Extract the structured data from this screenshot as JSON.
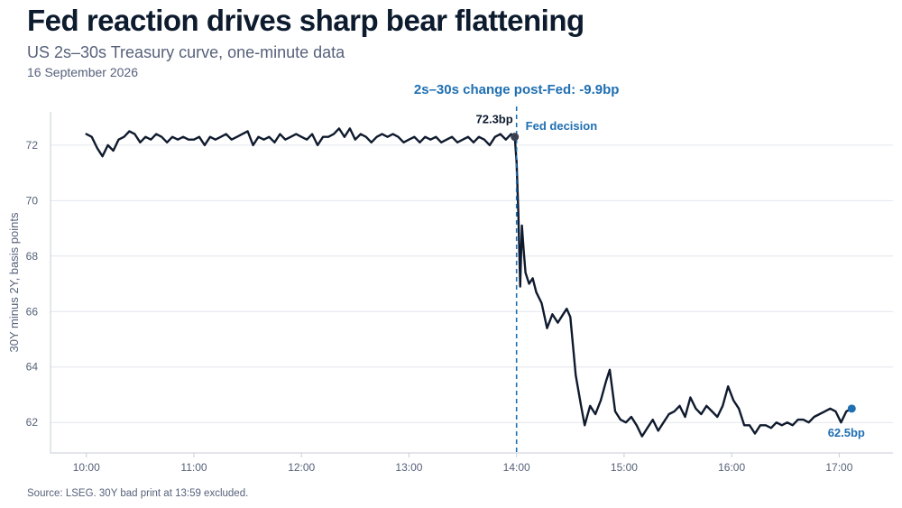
{
  "header": {
    "title": "Fed reaction drives sharp bear flattening",
    "subtitle": "US 2s–30s Treasury curve, one-minute data",
    "date": "16 September 2026"
  },
  "footer": {
    "source": "Source: LSEG. 30Y bad print at 13:59 excluded."
  },
  "colors": {
    "line": "#0f1a2e",
    "accent": "#1f6fb2",
    "grid": "#e3e6ee",
    "axis": "#c9cdd8",
    "muted": "#56617a",
    "label": "#0d1b2e"
  },
  "chart_data": {
    "type": "line",
    "title": "Fed reaction drives sharp bear flattening",
    "xlabel": "",
    "ylabel": "30Y minus 2Y, basis points",
    "xlim": [
      "09:40",
      "17:30"
    ],
    "ylim": [
      60.9,
      73.2
    ],
    "x_ticks": [
      "10:00",
      "11:00",
      "12:00",
      "13:00",
      "14:00",
      "15:00",
      "16:00",
      "17:00"
    ],
    "y_ticks": [
      62,
      64,
      66,
      68,
      70,
      72
    ],
    "grid": "horizontal",
    "series": [
      {
        "points": [
          [
            "10:00",
            72.4
          ],
          [
            "10:03",
            72.3
          ],
          [
            "10:06",
            71.9
          ],
          [
            "10:09",
            71.6
          ],
          [
            "10:12",
            72.0
          ],
          [
            "10:15",
            71.8
          ],
          [
            "10:18",
            72.2
          ],
          [
            "10:21",
            72.3
          ],
          [
            "10:24",
            72.5
          ],
          [
            "10:27",
            72.4
          ],
          [
            "10:30",
            72.1
          ],
          [
            "10:33",
            72.3
          ],
          [
            "10:36",
            72.2
          ],
          [
            "10:39",
            72.4
          ],
          [
            "10:42",
            72.3
          ],
          [
            "10:45",
            72.1
          ],
          [
            "10:48",
            72.3
          ],
          [
            "10:51",
            72.2
          ],
          [
            "10:54",
            72.3
          ],
          [
            "10:57",
            72.2
          ],
          [
            "11:00",
            72.2
          ],
          [
            "11:03",
            72.3
          ],
          [
            "11:06",
            72.0
          ],
          [
            "11:09",
            72.3
          ],
          [
            "11:12",
            72.2
          ],
          [
            "11:15",
            72.3
          ],
          [
            "11:18",
            72.4
          ],
          [
            "11:21",
            72.2
          ],
          [
            "11:24",
            72.3
          ],
          [
            "11:27",
            72.4
          ],
          [
            "11:30",
            72.5
          ],
          [
            "11:33",
            72.0
          ],
          [
            "11:36",
            72.3
          ],
          [
            "11:39",
            72.2
          ],
          [
            "11:42",
            72.3
          ],
          [
            "11:45",
            72.1
          ],
          [
            "11:48",
            72.4
          ],
          [
            "11:51",
            72.2
          ],
          [
            "11:54",
            72.3
          ],
          [
            "11:57",
            72.4
          ],
          [
            "12:00",
            72.3
          ],
          [
            "12:03",
            72.2
          ],
          [
            "12:06",
            72.4
          ],
          [
            "12:09",
            72.0
          ],
          [
            "12:12",
            72.3
          ],
          [
            "12:15",
            72.3
          ],
          [
            "12:18",
            72.4
          ],
          [
            "12:21",
            72.6
          ],
          [
            "12:24",
            72.3
          ],
          [
            "12:27",
            72.6
          ],
          [
            "12:30",
            72.2
          ],
          [
            "12:33",
            72.4
          ],
          [
            "12:36",
            72.3
          ],
          [
            "12:39",
            72.1
          ],
          [
            "12:42",
            72.3
          ],
          [
            "12:45",
            72.4
          ],
          [
            "12:48",
            72.3
          ],
          [
            "12:51",
            72.4
          ],
          [
            "12:54",
            72.3
          ],
          [
            "12:57",
            72.1
          ],
          [
            "13:00",
            72.2
          ],
          [
            "13:03",
            72.3
          ],
          [
            "13:06",
            72.1
          ],
          [
            "13:09",
            72.3
          ],
          [
            "13:12",
            72.2
          ],
          [
            "13:15",
            72.3
          ],
          [
            "13:18",
            72.1
          ],
          [
            "13:21",
            72.2
          ],
          [
            "13:24",
            72.3
          ],
          [
            "13:27",
            72.1
          ],
          [
            "13:30",
            72.2
          ],
          [
            "13:33",
            72.3
          ],
          [
            "13:36",
            72.1
          ],
          [
            "13:39",
            72.3
          ],
          [
            "13:42",
            72.2
          ],
          [
            "13:45",
            72.0
          ],
          [
            "13:48",
            72.3
          ],
          [
            "13:51",
            72.4
          ],
          [
            "13:54",
            72.2
          ],
          [
            "13:57",
            72.4
          ],
          [
            "13:59",
            72.3
          ],
          [
            "14:00",
            71.4
          ],
          [
            "14:01",
            69.5
          ],
          [
            "14:02",
            66.9
          ],
          [
            "14:03",
            69.1
          ],
          [
            "14:04",
            68.2
          ],
          [
            "14:05",
            67.4
          ],
          [
            "14:07",
            67.0
          ],
          [
            "14:09",
            67.2
          ],
          [
            "14:11",
            66.7
          ],
          [
            "14:14",
            66.3
          ],
          [
            "14:17",
            65.4
          ],
          [
            "14:20",
            65.9
          ],
          [
            "14:23",
            65.6
          ],
          [
            "14:26",
            65.9
          ],
          [
            "14:28",
            66.1
          ],
          [
            "14:30",
            65.8
          ],
          [
            "14:33",
            63.7
          ],
          [
            "14:36",
            62.6
          ],
          [
            "14:38",
            61.9
          ],
          [
            "14:41",
            62.6
          ],
          [
            "14:44",
            62.3
          ],
          [
            "14:47",
            62.8
          ],
          [
            "14:50",
            63.5
          ],
          [
            "14:52",
            63.9
          ],
          [
            "14:55",
            62.4
          ],
          [
            "14:58",
            62.1
          ],
          [
            "15:01",
            62.0
          ],
          [
            "15:04",
            62.2
          ],
          [
            "15:07",
            61.9
          ],
          [
            "15:10",
            61.5
          ],
          [
            "15:13",
            61.8
          ],
          [
            "15:16",
            62.1
          ],
          [
            "15:19",
            61.7
          ],
          [
            "15:22",
            62.0
          ],
          [
            "15:25",
            62.3
          ],
          [
            "15:28",
            62.4
          ],
          [
            "15:31",
            62.6
          ],
          [
            "15:34",
            62.2
          ],
          [
            "15:37",
            62.9
          ],
          [
            "15:40",
            62.5
          ],
          [
            "15:43",
            62.3
          ],
          [
            "15:46",
            62.6
          ],
          [
            "15:49",
            62.4
          ],
          [
            "15:52",
            62.2
          ],
          [
            "15:55",
            62.6
          ],
          [
            "15:58",
            63.3
          ],
          [
            "16:01",
            62.8
          ],
          [
            "16:04",
            62.5
          ],
          [
            "16:07",
            61.9
          ],
          [
            "16:10",
            61.9
          ],
          [
            "16:13",
            61.6
          ],
          [
            "16:16",
            61.9
          ],
          [
            "16:19",
            61.9
          ],
          [
            "16:22",
            61.8
          ],
          [
            "16:25",
            62.0
          ],
          [
            "16:28",
            61.9
          ],
          [
            "16:31",
            62.0
          ],
          [
            "16:34",
            61.9
          ],
          [
            "16:37",
            62.1
          ],
          [
            "16:40",
            62.1
          ],
          [
            "16:43",
            62.0
          ],
          [
            "16:46",
            62.2
          ],
          [
            "16:49",
            62.3
          ],
          [
            "16:52",
            62.4
          ],
          [
            "16:55",
            62.5
          ],
          [
            "16:58",
            62.4
          ],
          [
            "17:01",
            62.0
          ],
          [
            "17:04",
            62.4
          ],
          [
            "17:07",
            62.5
          ]
        ]
      }
    ],
    "annotations": {
      "event_time": "14:00",
      "event_label": "Fed decision",
      "headline": "2s–30s change post-Fed: -9.9bp",
      "start_label": "72.3bp",
      "end_label": "62.5bp"
    }
  }
}
